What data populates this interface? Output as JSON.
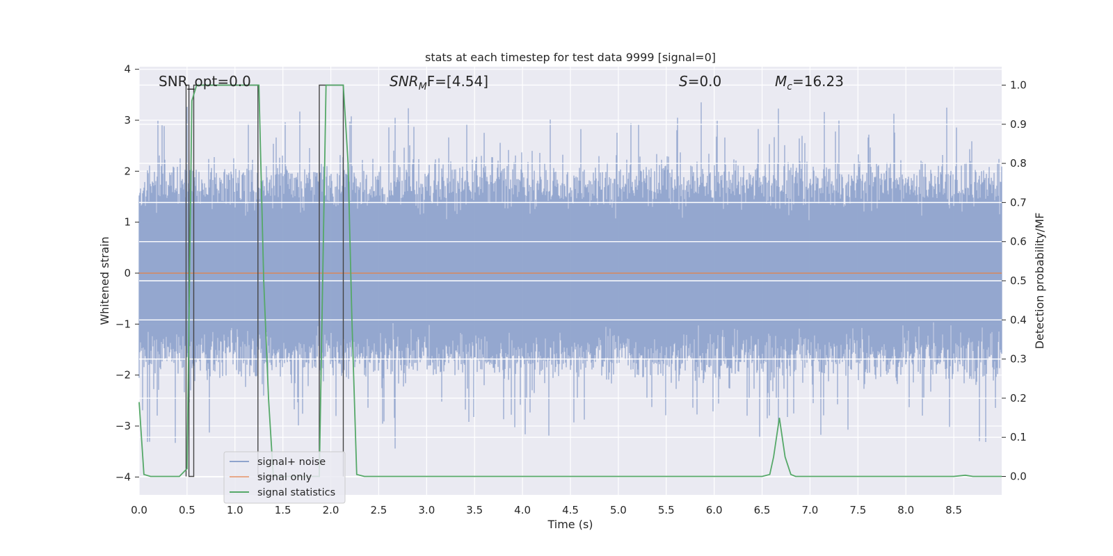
{
  "chart_data": {
    "type": "line",
    "title": "stats at each timestep for test data 9999 [signal=0]",
    "xlabel": "Time (s)",
    "ylabel_left": "Whitened strain",
    "ylabel_right": "Detection probability/MF",
    "xlim": [
      0.0,
      9.0
    ],
    "ylim_left": [
      -4.35,
      4.05
    ],
    "ylim_right": [
      -0.047,
      1.047
    ],
    "x_ticks": [
      "0.0",
      "0.5",
      "1.0",
      "1.5",
      "2.0",
      "2.5",
      "3.0",
      "3.5",
      "4.0",
      "4.5",
      "5.0",
      "5.5",
      "6.0",
      "6.5",
      "7.0",
      "7.5",
      "8.0",
      "8.5"
    ],
    "y_left_ticks": [
      "4",
      "3",
      "2",
      "1",
      "0",
      "−1",
      "−2",
      "−3",
      "−4"
    ],
    "y_right_ticks": [
      "1.0",
      "0.9",
      "0.8",
      "0.7",
      "0.6",
      "0.5",
      "0.4",
      "0.3",
      "0.2",
      "0.1",
      "0.0"
    ],
    "grid": true,
    "annotations": {
      "snr_opt": "SNR_opt=0.0",
      "snr_mf_main": "SNR",
      "snr_mf_sub": "M",
      "snr_mf_rest": "F=[4.54]",
      "s_main": "S",
      "s_rest": "=0.0",
      "mc_main": "M",
      "mc_sub": "c",
      "mc_rest": "=16.23"
    },
    "legend": {
      "placement": "lower-left",
      "entries": [
        "signal+ noise",
        "signal only",
        "signal statistics"
      ]
    },
    "series": [
      {
        "name": "signal+ noise",
        "axis": "left",
        "color": "#8fa3cc",
        "kind": "noise",
        "x_range": [
          0.0,
          9.0
        ],
        "typical_envelope": [
          -2.0,
          2.1
        ],
        "peak_range": [
          -3.65,
          3.6
        ]
      },
      {
        "name": "signal only",
        "axis": "left",
        "color": "#dd8452",
        "x": [
          0.0,
          9.0
        ],
        "y": [
          0.0,
          0.0
        ]
      },
      {
        "name": "signal statistics",
        "axis": "right",
        "color": "#55a868",
        "x": [
          0.0,
          0.05,
          0.12,
          0.2,
          0.3,
          0.42,
          0.5,
          0.55,
          0.6,
          0.65,
          0.7,
          0.8,
          0.9,
          1.0,
          1.1,
          1.2,
          1.25,
          1.3,
          1.35,
          1.4,
          1.5,
          1.6,
          1.7,
          1.8,
          1.88,
          1.95,
          2.0,
          2.05,
          2.13,
          2.18,
          2.22,
          2.27,
          2.35,
          2.5,
          3.0,
          4.0,
          5.0,
          6.0,
          6.5,
          6.58,
          6.62,
          6.68,
          6.74,
          6.8,
          6.85,
          7.0,
          8.0,
          8.5,
          8.62,
          8.7,
          9.0
        ],
        "y": [
          0.19,
          0.005,
          0.0,
          0.0,
          0.0,
          0.0,
          0.02,
          0.96,
          1.0,
          1.0,
          1.0,
          1.0,
          1.0,
          1.0,
          1.0,
          1.0,
          1.0,
          0.5,
          0.2,
          0.0,
          0.0,
          0.0,
          0.0,
          0.0,
          0.0,
          1.0,
          1.0,
          1.0,
          1.0,
          0.8,
          0.4,
          0.005,
          0.0,
          0.0,
          0.0,
          0.0,
          0.0,
          0.0,
          0.0,
          0.005,
          0.05,
          0.15,
          0.05,
          0.005,
          0.0,
          0.0,
          0.0,
          0.0,
          0.003,
          0.0,
          0.0
        ]
      },
      {
        "name": "matched filter",
        "axis": "right",
        "color": "#444444",
        "x": [
          0.49,
          0.49,
          0.52,
          0.52,
          0.57,
          0.57,
          1.24,
          1.24,
          1.88,
          1.88,
          2.13,
          2.13
        ],
        "y": [
          0.0,
          1.0,
          1.0,
          0.0,
          0.0,
          1.0,
          1.0,
          0.0,
          0.0,
          1.0,
          1.0,
          0.0
        ]
      }
    ]
  }
}
